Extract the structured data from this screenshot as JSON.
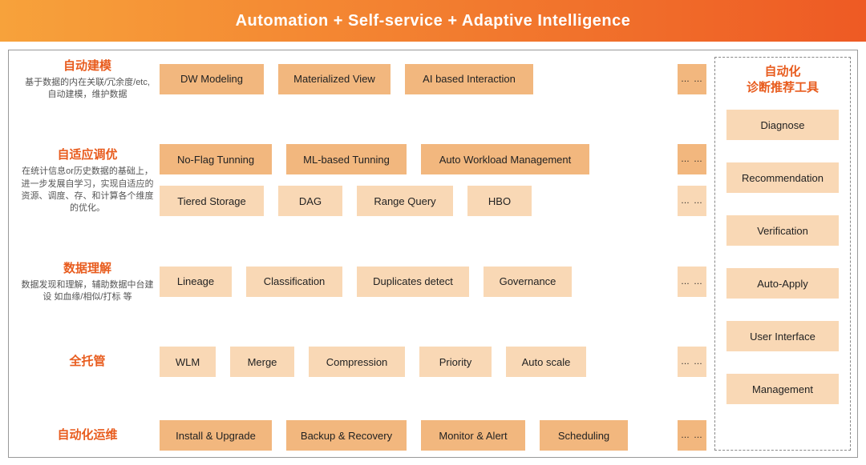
{
  "colors": {
    "header_gradient_from": "#f7a23b",
    "header_gradient_to": "#ee5a24",
    "box_bg": "#f2b77e",
    "box_light_bg": "#f9d8b5",
    "accent_text": "#e85c1e"
  },
  "header": {
    "text": "Automation  +  Self-service  +  Adaptive Intelligence"
  },
  "rows": [
    {
      "title": "自动建模",
      "desc": "基于数据的内在关联/冗余度/etc, 自动建模，维护数据",
      "lines": [
        {
          "boxes": [
            "DW Modeling",
            "Materialized View",
            "AI based Interaction"
          ],
          "ellipsis": true,
          "light": false
        }
      ]
    },
    {
      "title": "自适应调优",
      "desc": "在统计信息or历史数据的基础上，进一步发展自学习，实现自适应的资源、调度、存、和计算各个维度的优化。",
      "lines": [
        {
          "boxes": [
            "No-Flag Tunning",
            "ML-based Tunning",
            "Auto Workload Management"
          ],
          "ellipsis": true,
          "light": false
        },
        {
          "boxes": [
            "Tiered Storage",
            "DAG",
            "Range Query",
            "HBO"
          ],
          "ellipsis": true,
          "light": true
        }
      ]
    },
    {
      "title": "数据理解",
      "desc": "数据发现和理解，辅助数据中台建设 如血缘/相似/打标  等",
      "lines": [
        {
          "boxes": [
            "Lineage",
            "Classification",
            "Duplicates detect",
            "Governance"
          ],
          "ellipsis": true,
          "light": true
        }
      ]
    },
    {
      "title": "全托管",
      "desc": "",
      "lines": [
        {
          "boxes": [
            "WLM",
            "Merge",
            "Compression",
            "Priority",
            "Auto scale"
          ],
          "ellipsis": true,
          "light": true
        }
      ]
    },
    {
      "title": "自动化运维",
      "desc": "",
      "lines": [
        {
          "boxes": [
            "Install & Upgrade",
            "Backup  & Recovery",
            "Monitor & Alert",
            "Scheduling"
          ],
          "ellipsis": true,
          "light": false
        }
      ]
    }
  ],
  "right": {
    "title": "自动化\n诊断推荐工具",
    "items": [
      "Diagnose",
      "Recommendation",
      "Verification",
      "Auto-Apply",
      "User Interface",
      "Management"
    ]
  },
  "ellipsis_text": "… …",
  "box_widths": {
    "DW Modeling": 130,
    "Materialized View": 140,
    "AI based Interaction": 160,
    "No-Flag Tunning": 140,
    "ML-based Tunning": 150,
    "Auto Workload Management": 210,
    "Tiered Storage": 130,
    "DAG": 80,
    "Range Query": 120,
    "HBO": 80,
    "Lineage": 90,
    "Classification": 120,
    "Duplicates detect": 140,
    "Governance": 110,
    "WLM": 70,
    "Merge": 80,
    "Compression": 120,
    "Priority": 90,
    "Auto scale": 100,
    "Install & Upgrade": 140,
    "Backup  & Recovery": 150,
    "Monitor & Alert": 130,
    "Scheduling": 110
  }
}
